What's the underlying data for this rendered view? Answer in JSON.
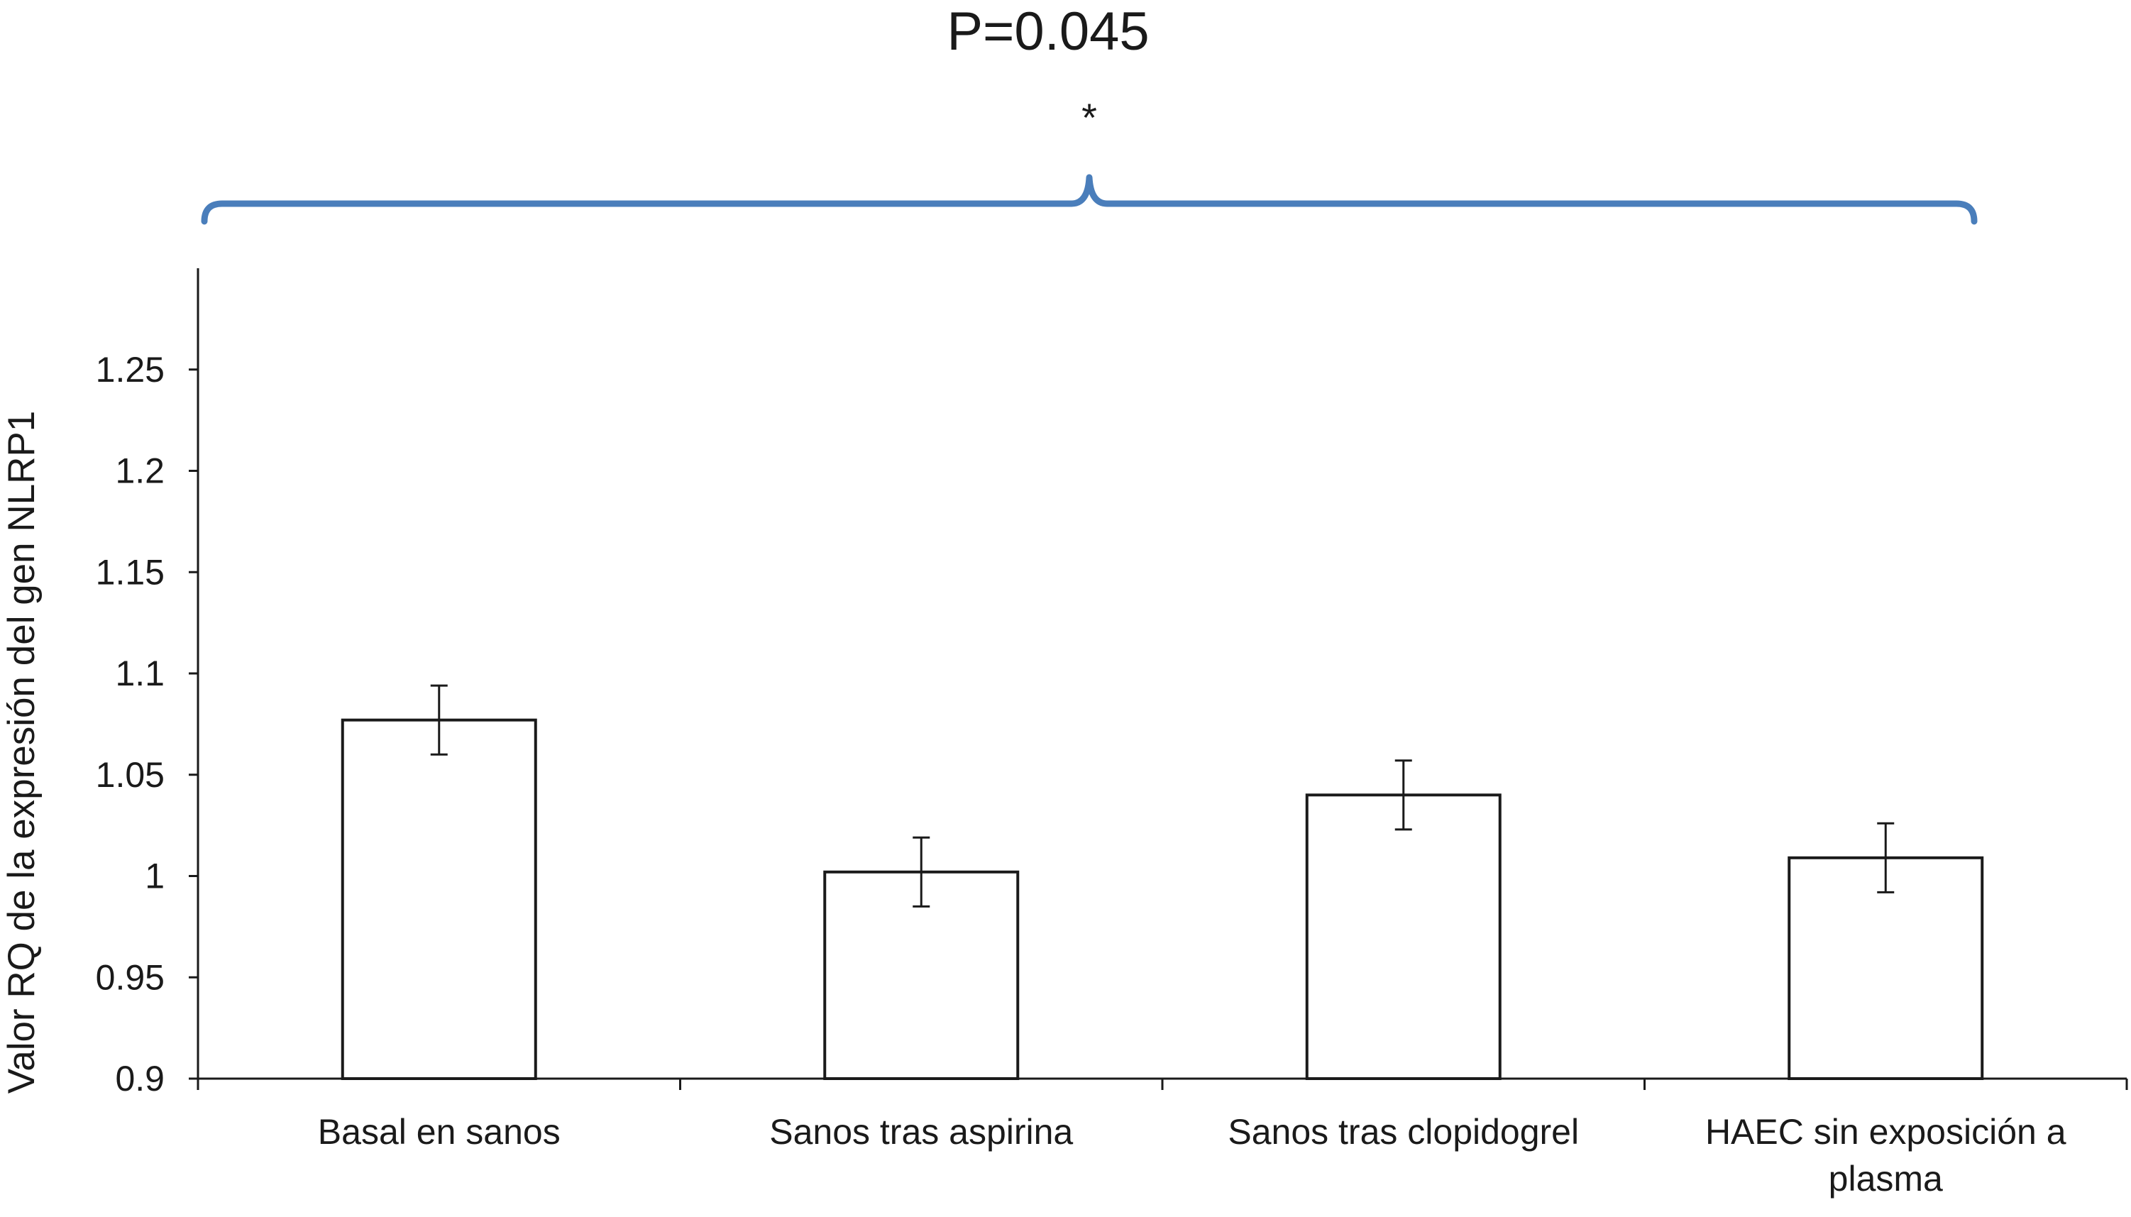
{
  "chart_data": {
    "type": "bar",
    "title": "",
    "xlabel": "",
    "ylabel": "Valor RQ de la expresión del gen NLRP1",
    "ylim": [
      0.9,
      1.3
    ],
    "yticks": [
      "0.9",
      "0.95",
      "1",
      "1.05",
      "1.1",
      "1.15",
      "1.2",
      "1.25"
    ],
    "categories": [
      [
        "Basal en sanos"
      ],
      [
        "Sanos tras aspirina"
      ],
      [
        "Sanos tras clopidogrel"
      ],
      [
        "HAEC sin exposición a",
        "plasma"
      ]
    ],
    "values": [
      1.077,
      1.002,
      1.04,
      1.009
    ],
    "error": [
      0.017,
      0.017,
      0.017,
      0.017
    ],
    "grid": false,
    "legend": "none",
    "annotation": {
      "text": "P=0.045",
      "marker": "*",
      "bracket_color": "#4a7ebb"
    }
  }
}
